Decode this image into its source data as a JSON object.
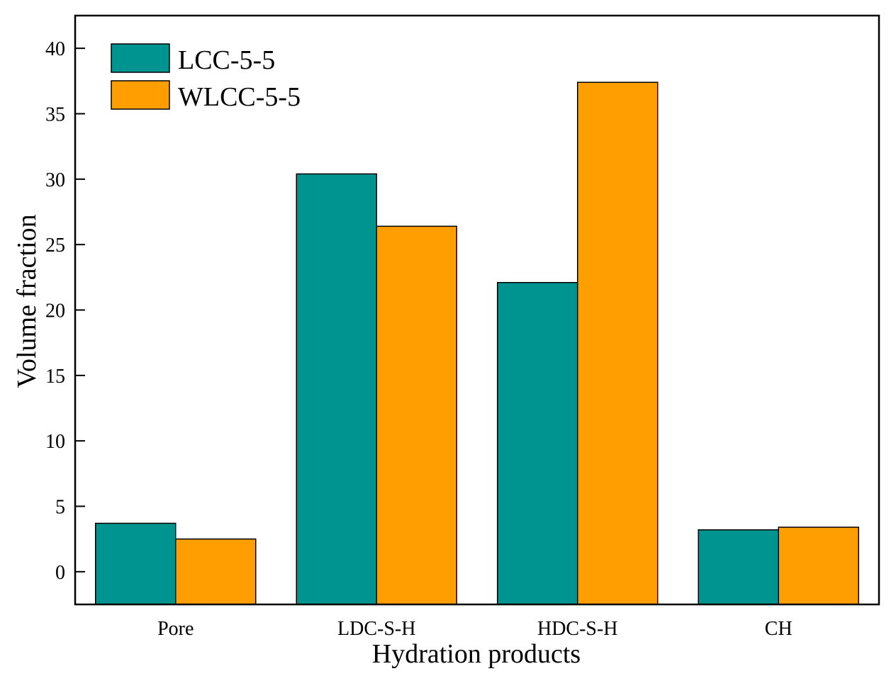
{
  "chart_data": {
    "type": "bar",
    "title": "",
    "xlabel": "Hydration products",
    "ylabel": "Volume fraction",
    "categories": [
      "Pore",
      "LDC-S-H",
      "HDC-S-H",
      "CH"
    ],
    "series": [
      {
        "name": "LCC-5-5",
        "color": "#009491",
        "values": [
          3.7,
          30.4,
          22.1,
          3.2
        ]
      },
      {
        "name": "WLCC-5-5",
        "color": "#FF9E00",
        "values": [
          2.5,
          26.4,
          37.4,
          3.4
        ]
      }
    ],
    "ylim": [
      -2.5,
      42.5
    ],
    "yticks": [
      "0",
      "5",
      "10",
      "15",
      "20",
      "25",
      "30",
      "35",
      "40"
    ],
    "legend_position": "top-left",
    "grid": false
  }
}
